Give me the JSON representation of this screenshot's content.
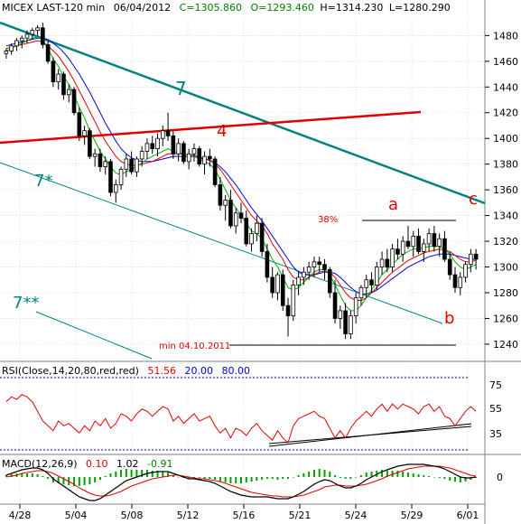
{
  "header": {
    "symbol": "MICEX LAST-120 min",
    "date": "06/04/2012",
    "close": "C=1305.860",
    "open": "O=1293.460",
    "high": "H=1314.230",
    "low": "L=1280.290"
  },
  "colors": {
    "candle": "#000000",
    "ma_fast": "#00b000",
    "ma_mid": "#e00000",
    "ma_slow": "#0000e0",
    "trend7": "#008080",
    "resistance4": "#e00000",
    "rsi": "#e00000",
    "macd": "#000000",
    "signal": "#e00000",
    "hist": "#00a000",
    "dotted_line": "#0000aa"
  },
  "annotations": {
    "label_7": "7",
    "label_4": "4",
    "label_7star": "7*",
    "label_7dstar": "7**",
    "label_a": "a",
    "label_b": "b",
    "label_c": "c",
    "pct_38": "38%",
    "min_label": "min 04.10.2011"
  },
  "rsi_panel": {
    "label_prefix": "RSI(Close,14,20,80,red,red)",
    "value": "51.56",
    "lower": "20.00",
    "upper": "80.00",
    "ticks": [
      "75",
      "55",
      "35"
    ]
  },
  "macd_panel": {
    "label_prefix": "MACD(12,26,9)",
    "v1": "0.10",
    "v2": "1.02",
    "v3": "-0.91",
    "ticks": [
      "0"
    ]
  },
  "chart_data": {
    "type": "candlestick",
    "y_axis": {
      "range": [
        1228,
        1495
      ],
      "ticks": [
        1480,
        1460,
        1440,
        1420,
        1400,
        1380,
        1360,
        1340,
        1320,
        1300,
        1280,
        1260,
        1240
      ]
    },
    "x_axis": {
      "labels": [
        "4/28",
        "5/04",
        "5/08",
        "5/12",
        "5/16",
        "5/21",
        "5/24",
        "5/29",
        "6/01"
      ]
    },
    "bars": [
      [
        1466,
        1470,
        1462,
        1468
      ],
      [
        1468,
        1474,
        1465,
        1472
      ],
      [
        1472,
        1478,
        1468,
        1476
      ],
      [
        1476,
        1480,
        1470,
        1478
      ],
      [
        1478,
        1484,
        1474,
        1481
      ],
      [
        1481,
        1486,
        1477,
        1484
      ],
      [
        1484,
        1488,
        1480,
        1486
      ],
      [
        1486,
        1490,
        1470,
        1473
      ],
      [
        1473,
        1476,
        1458,
        1460
      ],
      [
        1460,
        1463,
        1440,
        1444
      ],
      [
        1444,
        1454,
        1438,
        1450
      ],
      [
        1450,
        1452,
        1430,
        1434
      ],
      [
        1434,
        1442,
        1428,
        1438
      ],
      [
        1438,
        1440,
        1418,
        1420
      ],
      [
        1420,
        1424,
        1398,
        1402
      ],
      [
        1402,
        1410,
        1395,
        1406
      ],
      [
        1406,
        1408,
        1384,
        1386
      ],
      [
        1386,
        1392,
        1378,
        1388
      ],
      [
        1388,
        1392,
        1374,
        1378
      ],
      [
        1378,
        1386,
        1372,
        1382
      ],
      [
        1382,
        1384,
        1355,
        1358
      ],
      [
        1358,
        1368,
        1350,
        1364
      ],
      [
        1364,
        1378,
        1360,
        1376
      ],
      [
        1376,
        1388,
        1370,
        1384
      ],
      [
        1384,
        1390,
        1372,
        1374
      ],
      [
        1374,
        1386,
        1370,
        1384
      ],
      [
        1384,
        1394,
        1378,
        1390
      ],
      [
        1390,
        1400,
        1384,
        1396
      ],
      [
        1396,
        1402,
        1388,
        1392
      ],
      [
        1392,
        1404,
        1386,
        1400
      ],
      [
        1400,
        1410,
        1394,
        1406
      ],
      [
        1406,
        1420,
        1398,
        1402
      ],
      [
        1402,
        1406,
        1384,
        1388
      ],
      [
        1388,
        1400,
        1382,
        1396
      ],
      [
        1396,
        1398,
        1380,
        1382
      ],
      [
        1382,
        1392,
        1376,
        1388
      ],
      [
        1388,
        1396,
        1382,
        1392
      ],
      [
        1392,
        1394,
        1378,
        1380
      ],
      [
        1380,
        1390,
        1372,
        1386
      ],
      [
        1386,
        1392,
        1378,
        1384
      ],
      [
        1384,
        1386,
        1362,
        1364
      ],
      [
        1364,
        1370,
        1344,
        1348
      ],
      [
        1348,
        1356,
        1336,
        1352
      ],
      [
        1352,
        1360,
        1330,
        1332
      ],
      [
        1332,
        1346,
        1326,
        1342
      ],
      [
        1342,
        1350,
        1334,
        1338
      ],
      [
        1338,
        1344,
        1316,
        1318
      ],
      [
        1318,
        1330,
        1312,
        1326
      ],
      [
        1326,
        1340,
        1320,
        1334
      ],
      [
        1334,
        1338,
        1308,
        1312
      ],
      [
        1312,
        1318,
        1288,
        1292
      ],
      [
        1292,
        1300,
        1276,
        1280
      ],
      [
        1280,
        1296,
        1274,
        1294
      ],
      [
        1294,
        1298,
        1266,
        1270
      ],
      [
        1270,
        1276,
        1246,
        1262
      ],
      [
        1262,
        1290,
        1258,
        1286
      ],
      [
        1286,
        1296,
        1278,
        1292
      ],
      [
        1292,
        1300,
        1286,
        1296
      ],
      [
        1296,
        1304,
        1290,
        1300
      ],
      [
        1300,
        1308,
        1292,
        1304
      ],
      [
        1304,
        1308,
        1296,
        1302
      ],
      [
        1302,
        1306,
        1290,
        1298
      ],
      [
        1298,
        1300,
        1276,
        1280
      ],
      [
        1280,
        1290,
        1256,
        1260
      ],
      [
        1260,
        1270,
        1252,
        1266
      ],
      [
        1266,
        1272,
        1244,
        1248
      ],
      [
        1248,
        1266,
        1244,
        1262
      ],
      [
        1262,
        1280,
        1256,
        1276
      ],
      [
        1276,
        1286,
        1270,
        1284
      ],
      [
        1284,
        1294,
        1276,
        1290
      ],
      [
        1290,
        1296,
        1280,
        1286
      ],
      [
        1286,
        1304,
        1282,
        1300
      ],
      [
        1300,
        1312,
        1294,
        1306
      ],
      [
        1306,
        1314,
        1296,
        1300
      ],
      [
        1300,
        1318,
        1296,
        1314
      ],
      [
        1314,
        1322,
        1306,
        1310
      ],
      [
        1310,
        1324,
        1304,
        1320
      ],
      [
        1320,
        1332,
        1314,
        1316
      ],
      [
        1316,
        1328,
        1308,
        1324
      ],
      [
        1324,
        1330,
        1310,
        1312
      ],
      [
        1312,
        1322,
        1304,
        1318
      ],
      [
        1318,
        1330,
        1312,
        1326
      ],
      [
        1326,
        1332,
        1312,
        1316
      ],
      [
        1316,
        1326,
        1308,
        1322
      ],
      [
        1322,
        1328,
        1304,
        1306
      ],
      [
        1306,
        1312,
        1290,
        1294
      ],
      [
        1294,
        1300,
        1280,
        1284
      ],
      [
        1284,
        1296,
        1278,
        1292
      ],
      [
        1292,
        1304,
        1288,
        1302
      ],
      [
        1302,
        1314,
        1296,
        1310
      ],
      [
        1310,
        1314,
        1298,
        1306
      ]
    ],
    "ma_fast": [
      1468,
      1470,
      1472,
      1474,
      1476,
      1478,
      1479,
      1476,
      1470,
      1462,
      1456,
      1448,
      1442,
      1434,
      1424,
      1416,
      1406,
      1398,
      1390,
      1384,
      1378,
      1373,
      1372,
      1374,
      1376,
      1378,
      1381,
      1384,
      1386,
      1388,
      1390,
      1392,
      1390,
      1389,
      1388,
      1387,
      1386,
      1384,
      1382,
      1380,
      1376,
      1368,
      1360,
      1352,
      1346,
      1340,
      1334,
      1328,
      1326,
      1322,
      1314,
      1306,
      1300,
      1292,
      1284,
      1282,
      1284,
      1288,
      1292,
      1296,
      1298,
      1298,
      1294,
      1286,
      1278,
      1270,
      1266,
      1266,
      1270,
      1276,
      1282,
      1288,
      1294,
      1298,
      1302,
      1306,
      1310,
      1312,
      1314,
      1314,
      1315,
      1316,
      1316,
      1316,
      1314,
      1310,
      1304,
      1300,
      1298,
      1300,
      1302
    ],
    "ma_mid": [
      1470,
      1471,
      1472,
      1473,
      1474,
      1475,
      1476,
      1475,
      1472,
      1468,
      1464,
      1458,
      1452,
      1445,
      1437,
      1429,
      1421,
      1413,
      1405,
      1398,
      1392,
      1386,
      1382,
      1380,
      1379,
      1379,
      1380,
      1381,
      1382,
      1384,
      1386,
      1388,
      1388,
      1388,
      1388,
      1387,
      1387,
      1386,
      1384,
      1383,
      1380,
      1376,
      1370,
      1364,
      1358,
      1352,
      1346,
      1340,
      1336,
      1332,
      1326,
      1318,
      1312,
      1306,
      1298,
      1292,
      1290,
      1290,
      1292,
      1294,
      1296,
      1297,
      1296,
      1292,
      1286,
      1280,
      1276,
      1274,
      1274,
      1276,
      1280,
      1284,
      1288,
      1292,
      1296,
      1299,
      1302,
      1305,
      1307,
      1309,
      1311,
      1312,
      1313,
      1314,
      1313,
      1312,
      1309,
      1306,
      1304,
      1304,
      1305
    ],
    "ma_slow": [
      1472,
      1473,
      1474,
      1475,
      1476,
      1477,
      1478,
      1478,
      1477,
      1474,
      1471,
      1467,
      1462,
      1456,
      1450,
      1443,
      1436,
      1428,
      1420,
      1412,
      1405,
      1398,
      1392,
      1388,
      1385,
      1383,
      1382,
      1382,
      1382,
      1383,
      1384,
      1385,
      1386,
      1386,
      1386,
      1386,
      1386,
      1385,
      1384,
      1383,
      1381,
      1378,
      1374,
      1369,
      1364,
      1358,
      1352,
      1346,
      1341,
      1336,
      1330,
      1324,
      1318,
      1312,
      1306,
      1300,
      1296,
      1294,
      1294,
      1294,
      1295,
      1296,
      1296,
      1295,
      1292,
      1288,
      1284,
      1281,
      1279,
      1279,
      1280,
      1282,
      1285,
      1288,
      1291,
      1294,
      1297,
      1300,
      1302,
      1304,
      1306,
      1308,
      1309,
      1310,
      1310,
      1310,
      1309,
      1308,
      1307,
      1306,
      1306
    ],
    "rsi": [
      60,
      64,
      62,
      66,
      64,
      60,
      52,
      44,
      40,
      36,
      44,
      40,
      42,
      38,
      34,
      40,
      36,
      44,
      40,
      46,
      38,
      42,
      50,
      48,
      44,
      50,
      54,
      52,
      48,
      52,
      56,
      54,
      44,
      48,
      42,
      46,
      50,
      44,
      46,
      48,
      40,
      34,
      38,
      30,
      38,
      36,
      32,
      38,
      42,
      36,
      32,
      28,
      36,
      30,
      26,
      40,
      46,
      48,
      50,
      52,
      48,
      46,
      38,
      30,
      36,
      30,
      38,
      44,
      48,
      52,
      48,
      54,
      58,
      52,
      58,
      54,
      58,
      56,
      54,
      50,
      56,
      58,
      52,
      56,
      48,
      46,
      40,
      46,
      52,
      56,
      52
    ],
    "macd": [
      2,
      4,
      6,
      8,
      9,
      10,
      10,
      8,
      4,
      -2,
      -6,
      -10,
      -14,
      -18,
      -22,
      -24,
      -26,
      -26,
      -24,
      -20,
      -16,
      -12,
      -8,
      -4,
      -2,
      0,
      2,
      4,
      5,
      6,
      6,
      6,
      4,
      2,
      0,
      -2,
      -2,
      -3,
      -4,
      -5,
      -7,
      -10,
      -13,
      -16,
      -18,
      -20,
      -21,
      -22,
      -22,
      -22,
      -22,
      -23,
      -24,
      -24,
      -24,
      -22,
      -19,
      -16,
      -12,
      -8,
      -5,
      -3,
      -4,
      -7,
      -10,
      -12,
      -12,
      -10,
      -7,
      -3,
      0,
      3,
      6,
      8,
      10,
      12,
      13,
      14,
      14,
      14,
      14,
      13,
      12,
      11,
      9,
      6,
      3,
      0,
      -1,
      -1,
      0
    ],
    "signal": [
      0,
      1,
      2,
      4,
      5,
      6,
      7,
      7,
      6,
      4,
      1,
      -2,
      -5,
      -8,
      -12,
      -15,
      -18,
      -20,
      -21,
      -21,
      -20,
      -18,
      -16,
      -13,
      -10,
      -8,
      -6,
      -4,
      -2,
      -1,
      0,
      1,
      2,
      2,
      1,
      0,
      -1,
      -2,
      -2,
      -3,
      -4,
      -5,
      -7,
      -9,
      -11,
      -13,
      -15,
      -17,
      -18,
      -19,
      -20,
      -21,
      -21,
      -22,
      -22,
      -22,
      -21,
      -20,
      -18,
      -16,
      -14,
      -11,
      -10,
      -9,
      -9,
      -10,
      -10,
      -10,
      -9,
      -8,
      -6,
      -4,
      -2,
      1,
      3,
      5,
      7,
      9,
      10,
      11,
      12,
      12,
      12,
      12,
      11,
      10,
      8,
      6,
      4,
      2,
      1
    ]
  }
}
